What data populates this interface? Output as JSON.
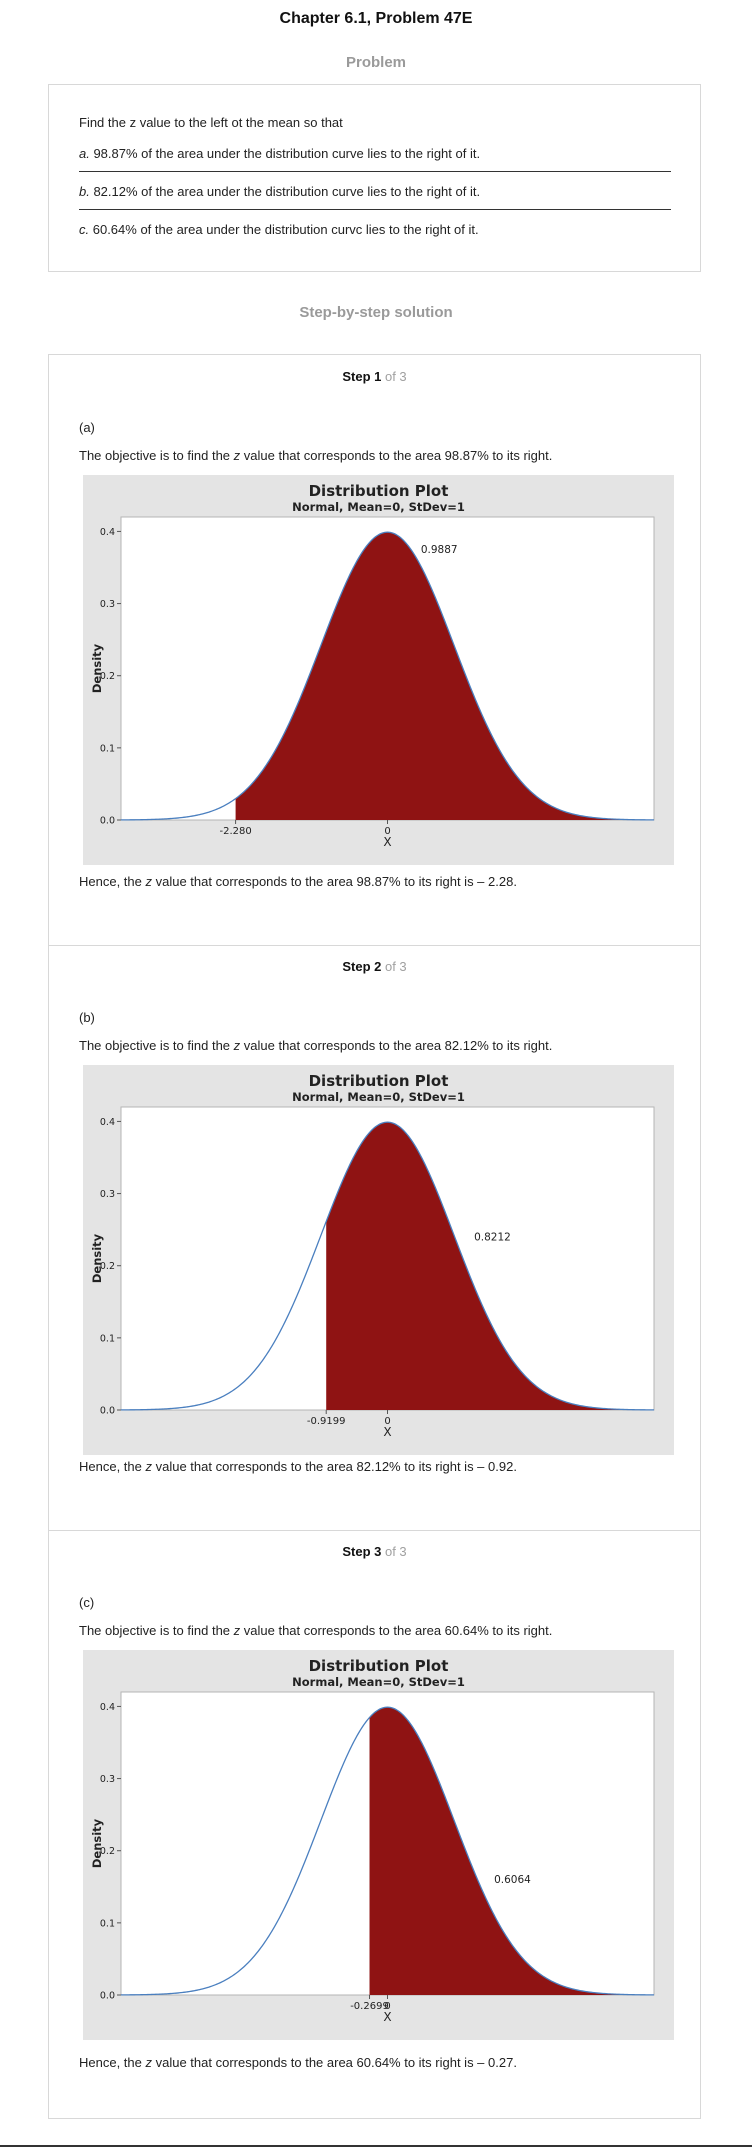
{
  "page_title": "Chapter 6.1, Problem 47E",
  "problem_heading": "Problem",
  "problem": {
    "intro": "Find the z value to the left ot the mean so that",
    "items": [
      {
        "letter": "a.",
        "text": " 98.87% of the area under the distribution curve lies to the right of it."
      },
      {
        "letter": "b.",
        "text": " 82.12% of the area under the distribution curve lies to the right of it."
      },
      {
        "letter": "c.",
        "text": " 60.64% of the area under the distribution curvc lies to the right of it."
      }
    ]
  },
  "solution_heading": "Step-by-step solution",
  "steps": [
    {
      "title": "Step 1",
      "of": " of 3",
      "part": "(a)",
      "objective_pre": "The objective is to find the ",
      "z": "z",
      "objective_post": " value that corresponds to the area 98.87% to its right.",
      "conclusion_pre": "Hence, the ",
      "conclusion_post": " value that corresponds to the area 98.87% to its right is – 2.28."
    },
    {
      "title": "Step 2",
      "of": " of 3",
      "part": "(b)",
      "objective_pre": "The objective is to find the ",
      "z": "z",
      "objective_post": " value that corresponds to the area 82.12% to its right.",
      "conclusion_pre": "Hence, the ",
      "conclusion_post": " value that corresponds to the area 82.12% to its right is – 0.92."
    },
    {
      "title": "Step 3",
      "of": " of 3",
      "part": "(c)",
      "objective_pre": "The objective is to find the ",
      "z": "z",
      "objective_post": " value that corresponds to the area 60.64% to its right.",
      "conclusion_pre": "Hence, the ",
      "conclusion_post": " value that corresponds to the area 60.64% to its right is – 0.27."
    }
  ],
  "colors": {
    "shade": "#8f1313",
    "curve": "#4a7fbf",
    "plot_bg": "#e4e4e4",
    "heading_gray": "#9a9a9a"
  },
  "chart_data": [
    {
      "type": "area",
      "title": "Distribution Plot",
      "subtitle": "Normal, Mean=0, StDev=1",
      "xlabel": "X",
      "ylabel": "Density",
      "xlim": [
        -4,
        4
      ],
      "ylim": [
        0,
        0.42
      ],
      "yticks": [
        "0.0",
        "0.1",
        "0.2",
        "0.3",
        "0.4"
      ],
      "ytick_values": [
        0,
        0.1,
        0.2,
        0.3,
        0.4
      ],
      "xticks": [
        {
          "value": -2.28,
          "label": "-2.280"
        },
        {
          "value": 0,
          "label": "0"
        }
      ],
      "shade_from": -2.28,
      "shade_to": 4,
      "area_label": "0.9887",
      "area_label_at": {
        "x": 0.5,
        "y": 0.37
      }
    },
    {
      "type": "area",
      "title": "Distribution Plot",
      "subtitle": "Normal, Mean=0, StDev=1",
      "xlabel": "X",
      "ylabel": "Density",
      "xlim": [
        -4,
        4
      ],
      "ylim": [
        0,
        0.42
      ],
      "yticks": [
        "0.0",
        "0.1",
        "0.2",
        "0.3",
        "0.4"
      ],
      "ytick_values": [
        0,
        0.1,
        0.2,
        0.3,
        0.4
      ],
      "xticks": [
        {
          "value": -0.9199,
          "label": "-0.9199"
        },
        {
          "value": 0,
          "label": "0"
        }
      ],
      "shade_from": -0.9199,
      "shade_to": 4,
      "area_label": "0.8212",
      "area_label_at": {
        "x": 1.3,
        "y": 0.235
      }
    },
    {
      "type": "area",
      "title": "Distribution Plot",
      "subtitle": "Normal, Mean=0, StDev=1",
      "xlabel": "X",
      "ylabel": "Density",
      "xlim": [
        -4,
        4
      ],
      "ylim": [
        0,
        0.42
      ],
      "yticks": [
        "0.0",
        "0.1",
        "0.2",
        "0.3",
        "0.4"
      ],
      "ytick_values": [
        0,
        0.1,
        0.2,
        0.3,
        0.4
      ],
      "xticks": [
        {
          "value": -0.2699,
          "label": "-0.2699"
        },
        {
          "value": 0,
          "label": "0"
        }
      ],
      "shade_from": -0.2699,
      "shade_to": 4,
      "area_label": "0.6064",
      "area_label_at": {
        "x": 1.6,
        "y": 0.155
      }
    }
  ]
}
